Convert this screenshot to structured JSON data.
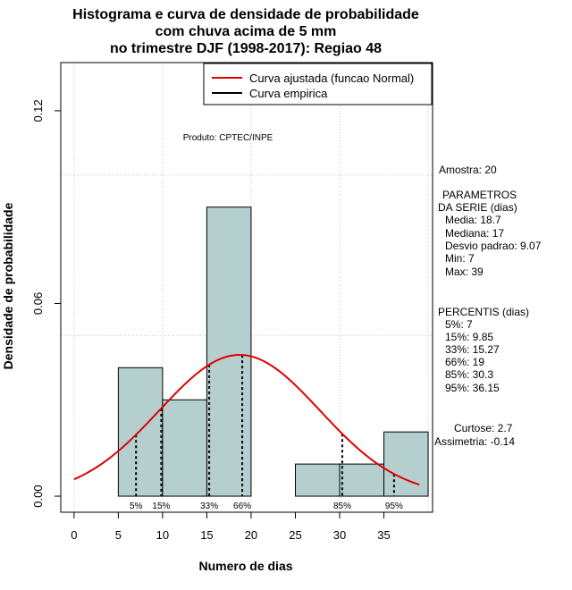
{
  "chart_data": {
    "type": "bar",
    "title_lines": [
      "Histograma e curva de densidade de probabilidade",
      "com chuva acima de 5 mm",
      "no trimestre DJF (1998-2017): Regiao 48"
    ],
    "xlabel": "Numero de dias",
    "ylabel": "Densidade de probabilidade",
    "xlim": [
      -1.5,
      40.5
    ],
    "ylim": [
      -0.005,
      0.135
    ],
    "x_ticks": [
      0,
      5,
      10,
      15,
      20,
      25,
      30,
      35
    ],
    "y_ticks": [
      0.0,
      0.06,
      0.12
    ],
    "y_tick_labels": [
      "0.00",
      "0.06",
      "0.12"
    ],
    "gridlines_y": [
      0.05,
      0.1
    ],
    "gridlines_x": [
      0,
      10,
      20,
      30,
      40
    ],
    "bins": [
      {
        "x0": 5,
        "x1": 10,
        "density": 0.04
      },
      {
        "x0": 10,
        "x1": 15,
        "density": 0.03
      },
      {
        "x0": 15,
        "x1": 20,
        "density": 0.09
      },
      {
        "x0": 20,
        "x1": 25,
        "density": 0.0
      },
      {
        "x0": 25,
        "x1": 30,
        "density": 0.01
      },
      {
        "x0": 30,
        "x1": 35,
        "density": 0.01
      },
      {
        "x0": 35,
        "x1": 40,
        "density": 0.02
      }
    ],
    "normal_fit": {
      "mean": 18.7,
      "sd": 9.07,
      "x_from": 0,
      "x to": 39
    },
    "percentile_markers": [
      {
        "label": "5%",
        "value": 7
      },
      {
        "label": "15%",
        "value": 9.85
      },
      {
        "label": "33%",
        "value": 15.27
      },
      {
        "label": "66%",
        "value": 19
      },
      {
        "label": "85%",
        "value": 30.3
      },
      {
        "label": "95%",
        "value": 36.15
      }
    ],
    "legend": {
      "position": "top-right",
      "entries": [
        {
          "label": "Curva ajustada (funcao Normal)",
          "color": "#e00000"
        },
        {
          "label": "Curva empirica",
          "color": "#000000"
        }
      ]
    },
    "source_note": "Produto: CPTEC/INPE",
    "bar_color": "#b5cfcf",
    "curve_color": "#e00000"
  },
  "stats_panel": {
    "amostra": "Amostra: 20",
    "param_header_1": "PARAMETROS",
    "param_header_2": "DA SERIE (dias)",
    "media": "Media: 18.7",
    "mediana": "Mediana: 17",
    "desvio": "Desvio padrao: 9.07",
    "min": "Min: 7",
    "max": "Max: 39",
    "percentis_header": "PERCENTIS (dias)",
    "p5": "5%: 7",
    "p15": "15%: 9.85",
    "p33": "33%: 15.27",
    "p66": "66%: 19",
    "p85": "85%: 30.3",
    "p95": "95%: 36.15",
    "curtose": "Curtose: 2.7",
    "assimetria": "Assimetria: -0.14"
  }
}
